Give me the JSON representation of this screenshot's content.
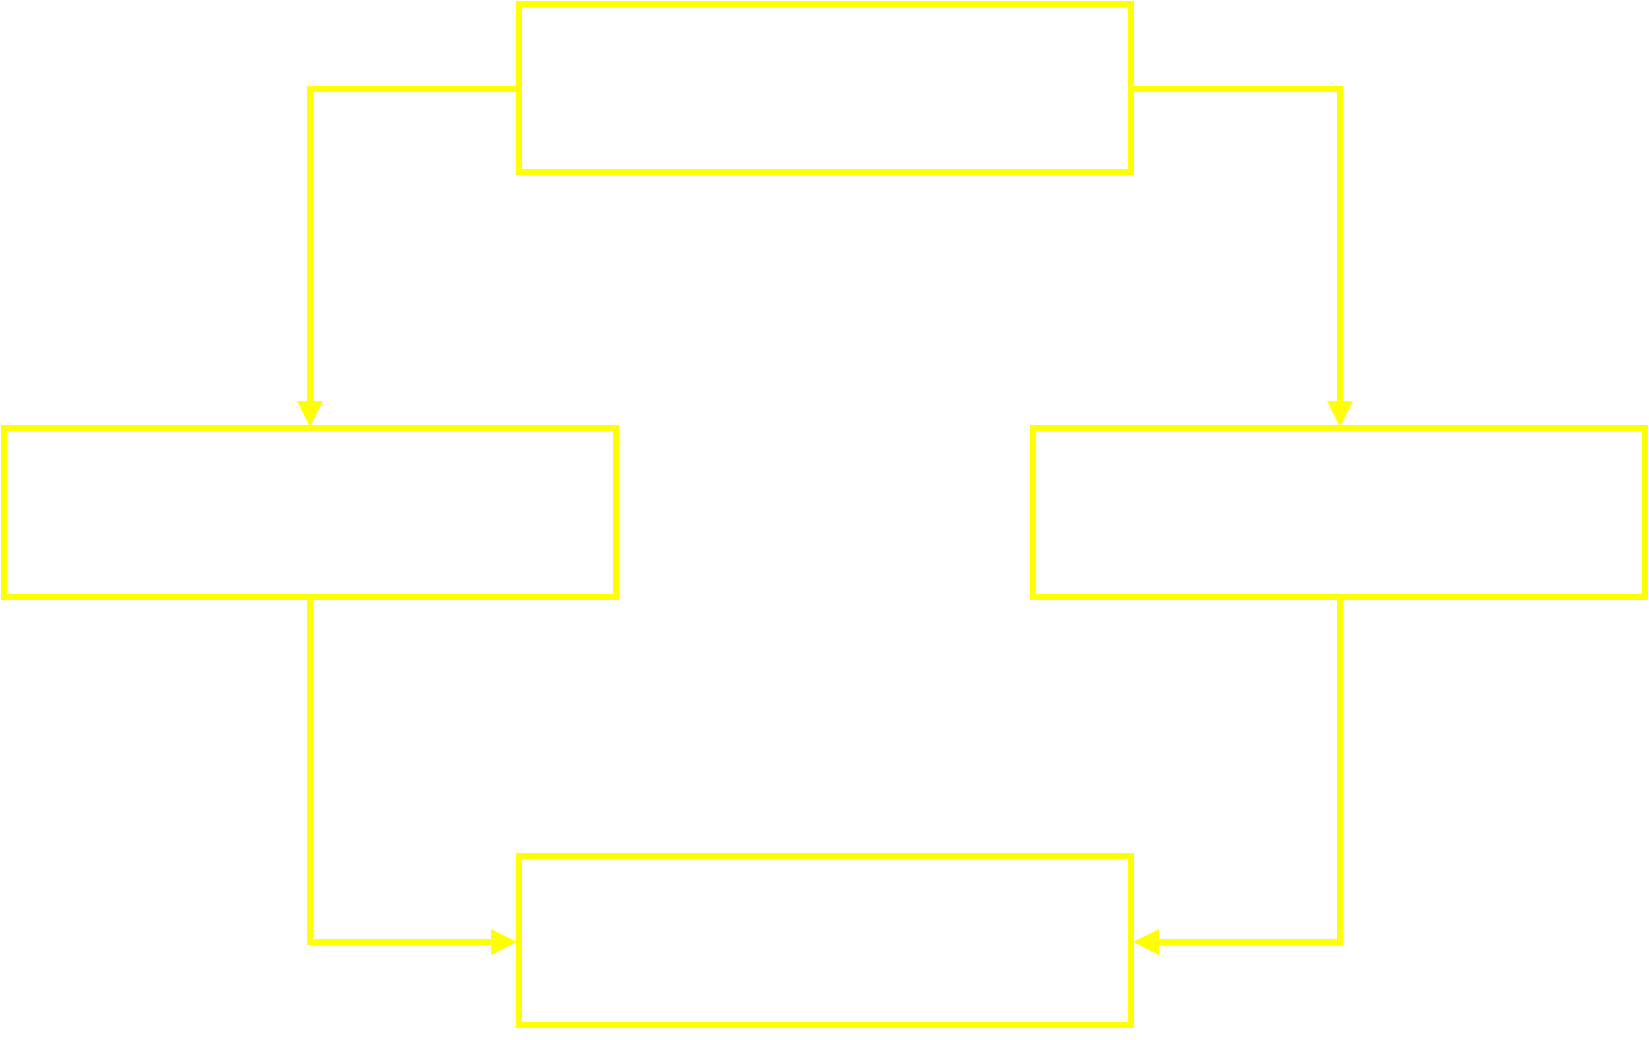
{
  "diagram": {
    "type": "flowchart",
    "colors": {
      "stroke": "#ffff00",
      "fill": "#ffffff",
      "background": "#ffffff"
    },
    "nodes": [
      {
        "id": "top",
        "label": ""
      },
      {
        "id": "left",
        "label": ""
      },
      {
        "id": "right",
        "label": ""
      },
      {
        "id": "bottom",
        "label": ""
      }
    ],
    "edges": [
      {
        "from": "top",
        "to": "left"
      },
      {
        "from": "top",
        "to": "right"
      },
      {
        "from": "left",
        "to": "bottom"
      },
      {
        "from": "right",
        "to": "bottom"
      }
    ]
  }
}
